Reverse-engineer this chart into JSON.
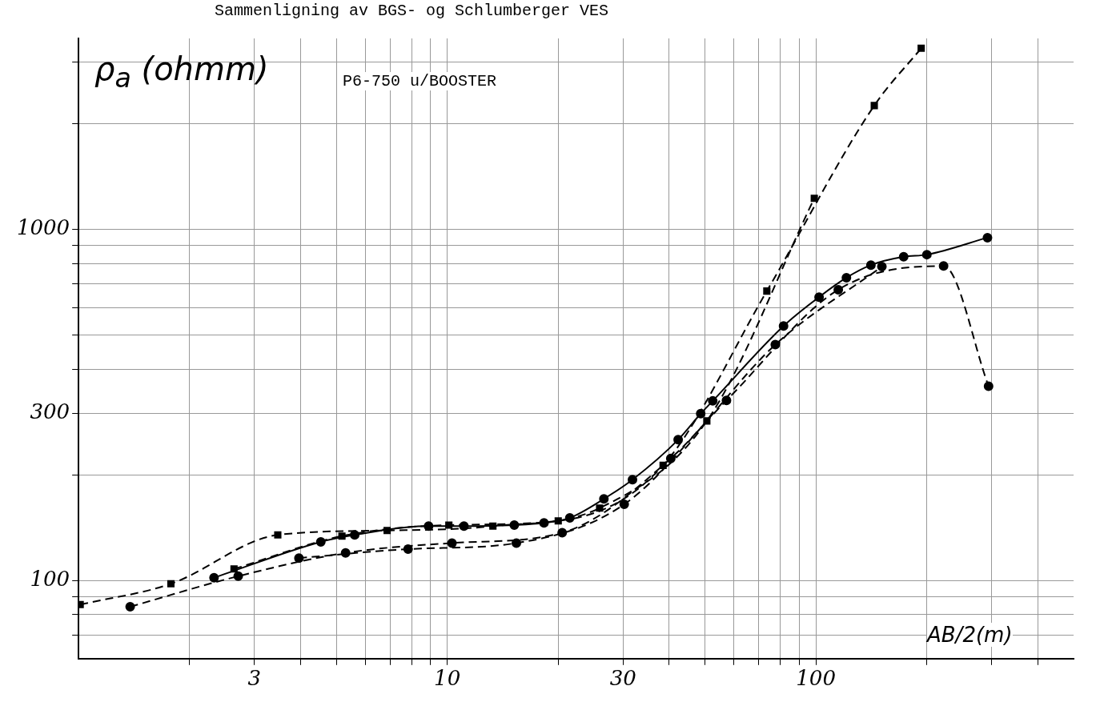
{
  "chart_data": {
    "type": "line",
    "title": "Sammenligning av BGS- og Schlumberger VES",
    "xlabel": "AB/2(m)",
    "ylabel": "ρ$_{a}$ (ohmm)",
    "annotations": [
      "P6-750 u/BOOSTER"
    ],
    "log": "xy",
    "grid": true,
    "legend": false,
    "xlim": [
      1,
      500
    ],
    "ylim": [
      60,
      3500
    ],
    "xticks": [
      {
        "value": 2,
        "label": null
      },
      3,
      {
        "value": 4,
        "label": null
      },
      {
        "value": 5,
        "label": null
      },
      {
        "value": 6,
        "label": null
      },
      {
        "value": 7,
        "label": null
      },
      {
        "value": 8,
        "label": null
      },
      {
        "value": 9,
        "label": null
      },
      10,
      {
        "value": 20,
        "label": null
      },
      30,
      {
        "value": 40,
        "label": null
      },
      {
        "value": 50,
        "label": null
      },
      {
        "value": 60,
        "label": null
      },
      {
        "value": 70,
        "label": null
      },
      {
        "value": 80,
        "label": null
      },
      {
        "value": 90,
        "label": null
      },
      100,
      {
        "value": 200,
        "label": null
      },
      {
        "value": 300,
        "label": null
      },
      {
        "value": 400,
        "label": null
      }
    ],
    "yticks": [
      {
        "value": 70,
        "label": null
      },
      {
        "value": 80,
        "label": null
      },
      {
        "value": 90,
        "label": null
      },
      100,
      {
        "value": 200,
        "label": null
      },
      300,
      {
        "value": 400,
        "label": null
      },
      {
        "value": 500,
        "label": null
      },
      {
        "value": 600,
        "label": null
      },
      {
        "value": 700,
        "label": null
      },
      {
        "value": 800,
        "label": null
      },
      {
        "value": 900,
        "label": null
      },
      1000,
      {
        "value": 2000,
        "label": null
      },
      {
        "value": 3000,
        "label": null
      }
    ],
    "series": [
      {
        "color": "#000000",
        "marker": "circle",
        "line_style": "solid",
        "x": [
          2.33,
          4.54,
          5.61,
          8.9,
          11.1,
          15.2,
          18.3,
          21.5,
          26.6,
          31.8,
          42.3,
          48.7,
          52.5,
          81.7,
          102,
          121,
          141,
          173,
          200,
          292
        ],
        "values": [
          102,
          129,
          135,
          143,
          143,
          144,
          146,
          151,
          171,
          194,
          252,
          299,
          325,
          531,
          642,
          729,
          792,
          836,
          848,
          948
        ]
      },
      {
        "color": "#000000",
        "marker": "square",
        "line_style": "dashed",
        "x": [
          1.01,
          1.78,
          3.47,
          6.87,
          13.3,
          25.9,
          50.6,
          99
        ],
        "values": [
          85.5,
          98,
          135,
          139,
          143,
          161,
          285,
          1227
        ]
      },
      {
        "color": "#000000",
        "marker": "circle",
        "line_style": "dashed",
        "x": [
          3.96,
          7.83,
          15.4,
          30.2,
          57.2,
          115,
          222,
          294
        ],
        "values": [
          116,
          123,
          128,
          165,
          326,
          674,
          787,
          358
        ]
      },
      {
        "color": "#000000",
        "marker": "circle",
        "line_style": "dashed",
        "x": [
          1.38,
          2.71,
          5.3,
          10.3,
          20.5,
          40.4,
          77.6,
          151
        ],
        "values": [
          84.3,
          103,
          120,
          128,
          137,
          223,
          470,
          784
        ]
      },
      {
        "color": "#000000",
        "marker": "square",
        "line_style": "dashed",
        "x": [
          2.64,
          5.18,
          10.1,
          20,
          38.5,
          73.6,
          144,
          193
        ],
        "values": [
          108,
          134,
          144,
          148,
          213,
          668,
          2254,
          3281
        ]
      }
    ]
  }
}
